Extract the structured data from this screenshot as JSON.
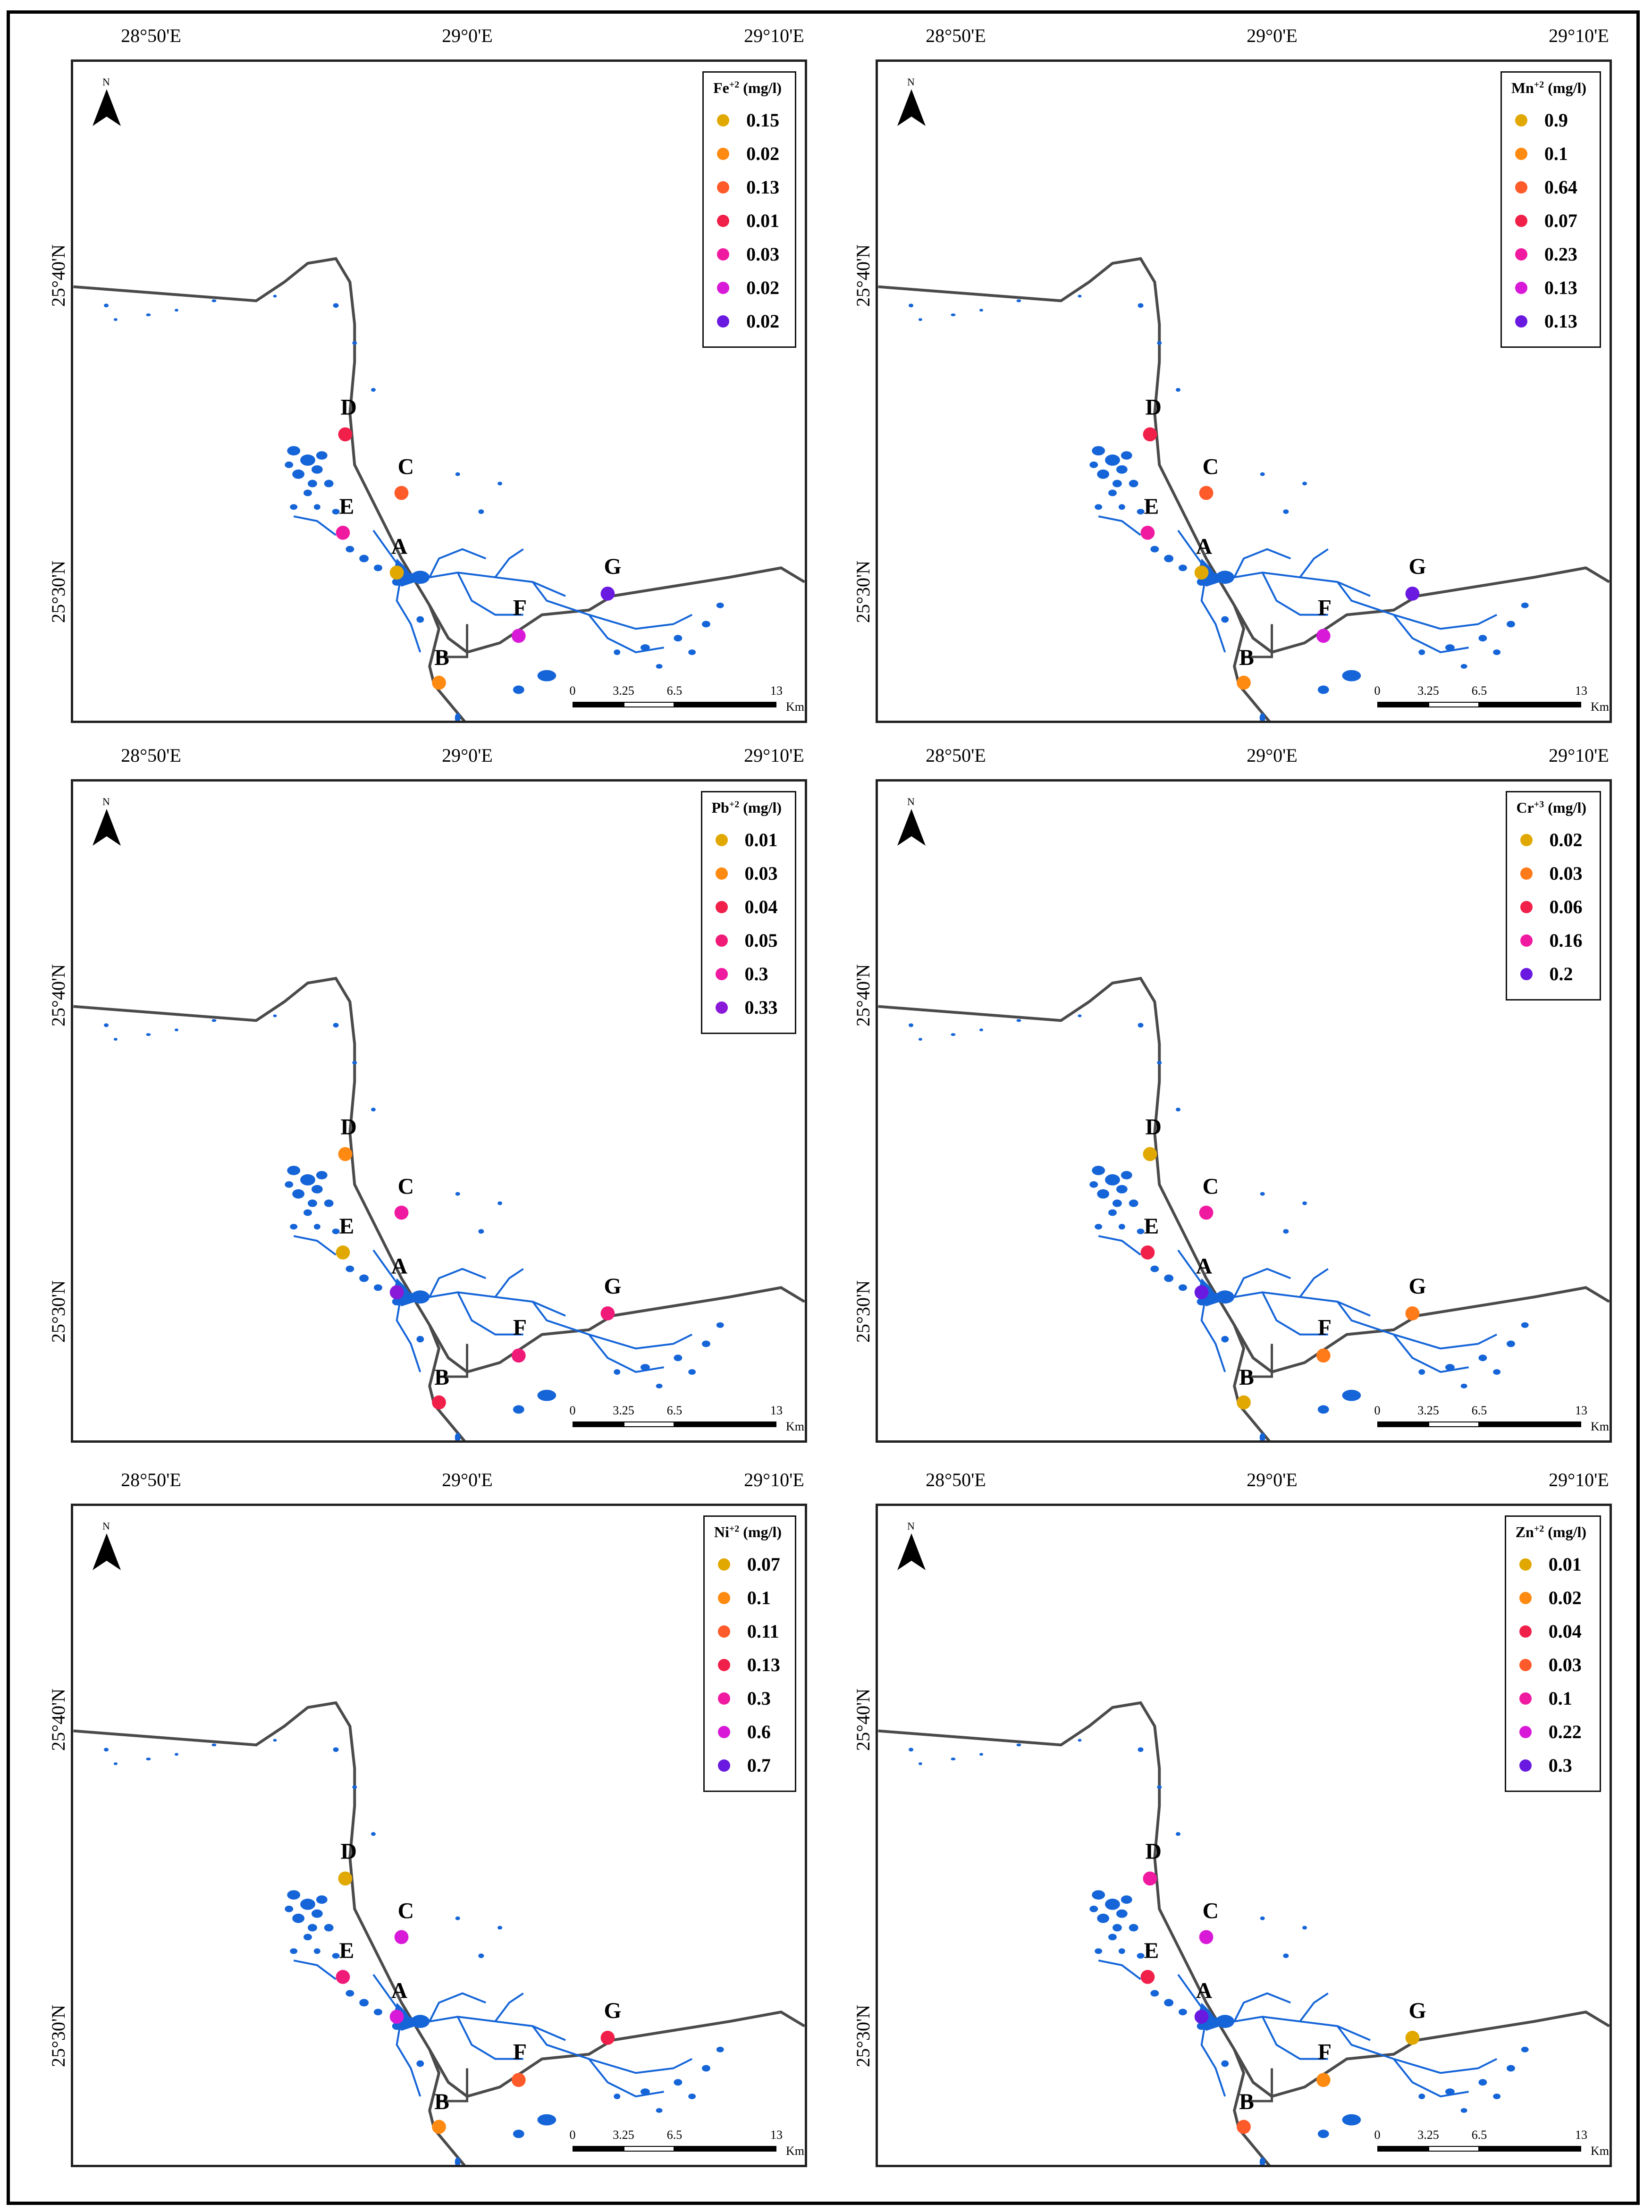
{
  "lon_ticks": [
    "28°50'E",
    "29°0'E",
    "29°10'E"
  ],
  "lat_ticks": [
    "25°40'N",
    "25°30'N"
  ],
  "north_label": "N",
  "scale": {
    "ticks": [
      "0",
      "3.25",
      "6.5",
      "13"
    ],
    "unit": "Km"
  },
  "site_labels": [
    "A",
    "B",
    "C",
    "D",
    "E",
    "F",
    "G"
  ],
  "colors": {
    "road": "#4a4a4a",
    "water": "#1565d8",
    "palette": [
      "#e0a800",
      "#ff8a12",
      "#ff5a2a",
      "#f0204a",
      "#f01aa0",
      "#d81ad8",
      "#6a1ae0"
    ]
  },
  "panels": [
    {
      "id": "fe",
      "ion": "Fe",
      "charge": "+2",
      "unit": "(mg/l)",
      "legend": [
        "0.15",
        "0.02",
        "0.13",
        "0.01",
        "0.03",
        "0.02",
        "0.02"
      ],
      "legend_colors": [
        "#e0a800",
        "#ff8a12",
        "#ff5a2a",
        "#f0204a",
        "#f01aa0",
        "#d81ad8",
        "#6a1ae0"
      ],
      "site_colors": {
        "A": "#e0a800",
        "B": "#ff8a12",
        "C": "#ff5a2a",
        "D": "#f0204a",
        "E": "#f01aa0",
        "F": "#d81ad8",
        "G": "#6a1ae0"
      }
    },
    {
      "id": "mn",
      "ion": "Mn",
      "charge": "+2",
      "unit": "(mg/l)",
      "legend": [
        "0.9",
        "0.1",
        "0.64",
        "0.07",
        "0.23",
        "0.13",
        "0.13"
      ],
      "legend_colors": [
        "#e0a800",
        "#ff8a12",
        "#ff5a2a",
        "#f0204a",
        "#f01aa0",
        "#d81ad8",
        "#6a1ae0"
      ],
      "site_colors": {
        "A": "#e0a800",
        "B": "#ff8a12",
        "C": "#ff5a2a",
        "D": "#f0204a",
        "E": "#f01aa0",
        "F": "#d81ad8",
        "G": "#6a1ae0"
      }
    },
    {
      "id": "pb",
      "ion": "Pb",
      "charge": "+2",
      "unit": "(mg/l)",
      "legend": [
        "0.01",
        "0.03",
        "0.04",
        "0.05",
        "0.3",
        "0.33"
      ],
      "legend_colors": [
        "#e0a800",
        "#ff8a12",
        "#f0204a",
        "#f01a78",
        "#f01aa0",
        "#8a1ad8"
      ],
      "site_colors": {
        "A": "#8a1ad8",
        "B": "#f0204a",
        "C": "#f01aa0",
        "D": "#ff8a12",
        "E": "#e0a800",
        "F": "#f01a78",
        "G": "#f01a78"
      }
    },
    {
      "id": "cr",
      "ion": "Cr",
      "charge": "+3",
      "unit": "(mg/l)",
      "legend": [
        "0.02",
        "0.03",
        "0.06",
        "0.16",
        "0.2"
      ],
      "legend_colors": [
        "#e0a800",
        "#ff7a18",
        "#f0204a",
        "#f01aa0",
        "#6a1ae0"
      ],
      "site_colors": {
        "A": "#6a1ae0",
        "B": "#e0a800",
        "C": "#f01aa0",
        "D": "#e0a800",
        "E": "#f0204a",
        "F": "#ff7a18",
        "G": "#ff7a18"
      }
    },
    {
      "id": "ni",
      "ion": "Ni",
      "charge": "+2",
      "unit": "(mg/l)",
      "legend": [
        "0.07",
        "0.1",
        "0.11",
        "0.13",
        "0.3",
        "0.6",
        "0.7"
      ],
      "legend_colors": [
        "#e0a800",
        "#ff8a12",
        "#ff5a2a",
        "#f0204a",
        "#f01aa0",
        "#d81ad8",
        "#6a1ae0"
      ],
      "site_colors": {
        "A": "#d81ad8",
        "B": "#ff8a12",
        "C": "#d81ad8",
        "D": "#e0a800",
        "E": "#f01a78",
        "F": "#ff5a2a",
        "G": "#f0204a"
      }
    },
    {
      "id": "zn",
      "ion": "Zn",
      "charge": "+2",
      "unit": "(mg/l)",
      "legend": [
        "0.01",
        "0.02",
        "0.04",
        "0.03",
        "0.1",
        "0.22",
        "0.3"
      ],
      "legend_colors": [
        "#e0a800",
        "#ff8a12",
        "#f0204a",
        "#ff5a2a",
        "#f01aa0",
        "#d81ad8",
        "#6a1ae0"
      ],
      "site_colors": {
        "A": "#6a1ae0",
        "B": "#ff5a2a",
        "C": "#d81ad8",
        "D": "#f01aa0",
        "E": "#f0204a",
        "F": "#ff8a12",
        "G": "#e0a800"
      }
    }
  ]
}
